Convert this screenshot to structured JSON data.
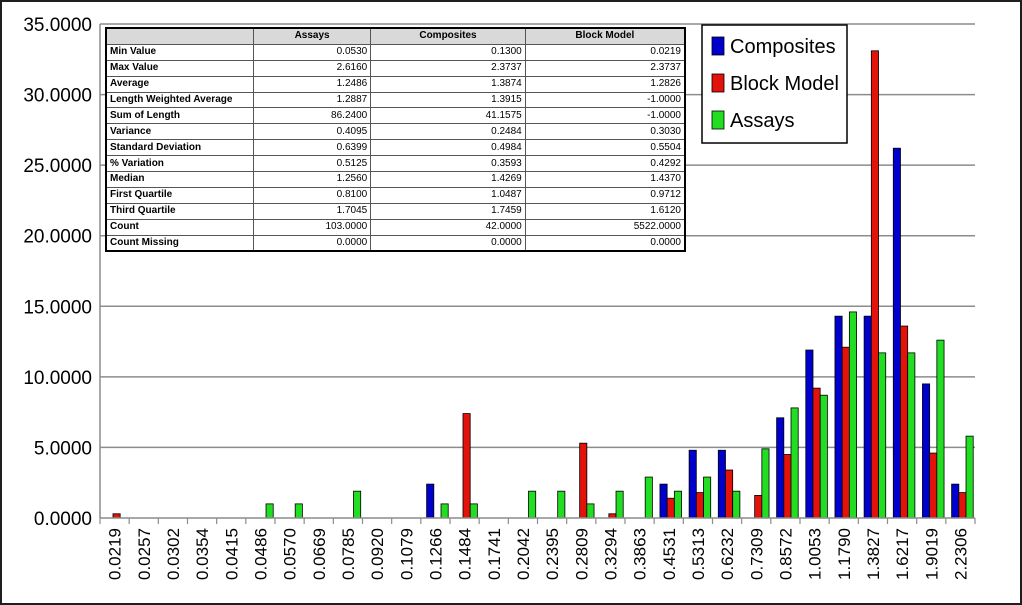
{
  "chart_data": {
    "type": "bar",
    "title": "",
    "xlabel": "",
    "ylabel": "",
    "ylim": [
      0,
      35
    ],
    "yticks": [
      "0.0000",
      "5.0000",
      "10.0000",
      "15.0000",
      "20.0000",
      "25.0000",
      "30.0000",
      "35.0000"
    ],
    "categories": [
      "0.0219",
      "0.0257",
      "0.0302",
      "0.0354",
      "0.0415",
      "0.0486",
      "0.0570",
      "0.0669",
      "0.0785",
      "0.0920",
      "0.1079",
      "0.1266",
      "0.1484",
      "0.1741",
      "0.2042",
      "0.2395",
      "0.2809",
      "0.3294",
      "0.3863",
      "0.4531",
      "0.5313",
      "0.6232",
      "0.7309",
      "0.8572",
      "1.0053",
      "1.1790",
      "1.3827",
      "1.6217",
      "1.9019",
      "2.2306"
    ],
    "series": [
      {
        "name": "Composites",
        "color": "#0000cc",
        "values": [
          0,
          0,
          0,
          0,
          0,
          0,
          0,
          0,
          0,
          0,
          0,
          2.4,
          0,
          0,
          0,
          0,
          0,
          0,
          0,
          2.4,
          4.8,
          4.8,
          0,
          7.1,
          11.9,
          14.3,
          14.3,
          26.2,
          9.5,
          2.4
        ]
      },
      {
        "name": "Block Model",
        "color": "#e3120b",
        "values": [
          0.3,
          0,
          0,
          0,
          0,
          0,
          0,
          0,
          0,
          0,
          0,
          0,
          7.4,
          0,
          0,
          0,
          5.3,
          0.3,
          0,
          1.4,
          1.8,
          3.4,
          1.6,
          4.5,
          9.2,
          12.1,
          33.1,
          13.6,
          4.6,
          1.8
        ]
      },
      {
        "name": "Assays",
        "color": "#22dd22",
        "values": [
          0,
          0,
          0,
          0,
          0,
          1.0,
          1.0,
          0,
          1.9,
          0,
          0,
          1.0,
          1.0,
          0,
          1.9,
          1.9,
          1.0,
          1.9,
          2.9,
          1.9,
          2.9,
          1.9,
          4.9,
          7.8,
          8.7,
          14.6,
          11.7,
          11.7,
          12.6,
          5.8
        ]
      }
    ],
    "legend_position": "top-right",
    "grid": true
  },
  "stats_table": {
    "columns": [
      "Assays",
      "Composites",
      "Block Model"
    ],
    "rows": [
      {
        "label": "Min Value",
        "values": [
          "0.0530",
          "0.1300",
          "0.0219"
        ]
      },
      {
        "label": "Max Value",
        "values": [
          "2.6160",
          "2.3737",
          "2.3737"
        ]
      },
      {
        "label": "Average",
        "values": [
          "1.2486",
          "1.3874",
          "1.2826"
        ]
      },
      {
        "label": "Length Weighted Average",
        "values": [
          "1.2887",
          "1.3915",
          "-1.0000"
        ]
      },
      {
        "label": "Sum of Length",
        "values": [
          "86.2400",
          "41.1575",
          "-1.0000"
        ]
      },
      {
        "label": "Variance",
        "values": [
          "0.4095",
          "0.2484",
          "0.3030"
        ]
      },
      {
        "label": "Standard Deviation",
        "values": [
          "0.6399",
          "0.4984",
          "0.5504"
        ]
      },
      {
        "label": "% Variation",
        "values": [
          "0.5125",
          "0.3593",
          "0.4292"
        ]
      },
      {
        "label": "Median",
        "values": [
          "1.2560",
          "1.4269",
          "1.4370"
        ]
      },
      {
        "label": "First Quartile",
        "values": [
          "0.8100",
          "1.0487",
          "0.9712"
        ]
      },
      {
        "label": "Third Quartile",
        "values": [
          "1.7045",
          "1.7459",
          "1.6120"
        ]
      },
      {
        "label": "Count",
        "values": [
          "103.0000",
          "42.0000",
          "5522.0000"
        ]
      },
      {
        "label": "Count Missing",
        "values": [
          "0.0000",
          "0.0000",
          "0.0000"
        ]
      }
    ]
  }
}
